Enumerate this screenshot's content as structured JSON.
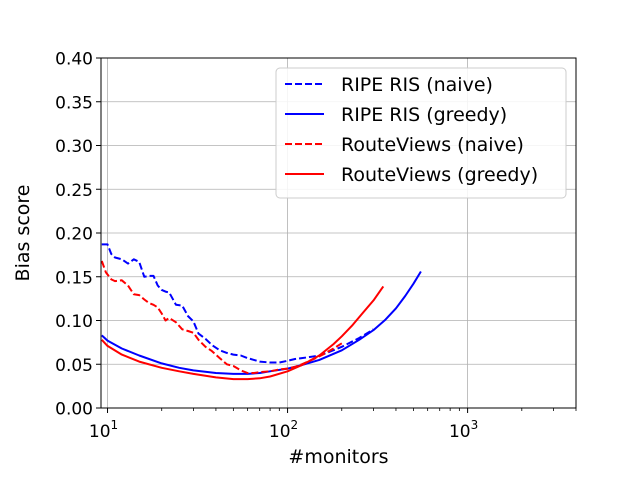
{
  "chart_data": {
    "type": "line",
    "title": "",
    "xlabel": "#monitors",
    "ylabel": "Bias score",
    "xscale": "log",
    "xlim": [
      9.2,
      4000
    ],
    "ylim": [
      0.0,
      0.4
    ],
    "x_ticks": [
      {
        "value": 10,
        "base": "10",
        "exp": "1"
      },
      {
        "value": 100,
        "base": "10",
        "exp": "2"
      },
      {
        "value": 1000,
        "base": "10",
        "exp": "3"
      }
    ],
    "y_ticks": [
      {
        "value": 0.0,
        "label": "0.00"
      },
      {
        "value": 0.05,
        "label": "0.05"
      },
      {
        "value": 0.1,
        "label": "0.10"
      },
      {
        "value": 0.15,
        "label": "0.15"
      },
      {
        "value": 0.2,
        "label": "0.20"
      },
      {
        "value": 0.25,
        "label": "0.25"
      },
      {
        "value": 0.3,
        "label": "0.30"
      },
      {
        "value": 0.35,
        "label": "0.35"
      },
      {
        "value": 0.4,
        "label": "0.40"
      }
    ],
    "grid": true,
    "legend_position": "top-right",
    "series": [
      {
        "name": "RIPE RIS (naive)",
        "color": "#0000ff",
        "style": "dashed",
        "x": [
          9.3,
          10,
          10.5,
          11,
          12,
          13,
          14,
          15,
          16,
          17,
          18,
          19,
          20,
          21,
          22,
          24,
          26,
          28,
          30,
          32,
          35,
          38,
          42,
          46,
          50,
          55,
          60,
          65,
          70,
          80,
          90,
          100,
          110,
          120,
          130,
          150,
          170,
          200,
          250,
          300
        ],
        "y": [
          0.187,
          0.187,
          0.176,
          0.172,
          0.17,
          0.165,
          0.17,
          0.167,
          0.15,
          0.151,
          0.151,
          0.14,
          0.135,
          0.133,
          0.132,
          0.118,
          0.117,
          0.105,
          0.099,
          0.085,
          0.079,
          0.072,
          0.066,
          0.063,
          0.061,
          0.06,
          0.057,
          0.055,
          0.053,
          0.052,
          0.052,
          0.054,
          0.056,
          0.057,
          0.058,
          0.06,
          0.064,
          0.07,
          0.08,
          0.09
        ]
      },
      {
        "name": "RIPE RIS (greedy)",
        "color": "#0000ff",
        "style": "solid",
        "x": [
          9.3,
          10,
          12,
          15,
          20,
          25,
          30,
          40,
          50,
          60,
          70,
          80,
          100,
          120,
          150,
          200,
          250,
          300,
          350,
          400,
          450,
          500,
          550
        ],
        "y": [
          0.083,
          0.077,
          0.068,
          0.06,
          0.051,
          0.046,
          0.043,
          0.04,
          0.039,
          0.039,
          0.04,
          0.042,
          0.045,
          0.049,
          0.055,
          0.066,
          0.078,
          0.089,
          0.101,
          0.114,
          0.128,
          0.142,
          0.156
        ]
      },
      {
        "name": "RouteViews (naive)",
        "color": "#ff0000",
        "style": "dashed",
        "x": [
          9.3,
          9.8,
          10.5,
          11,
          12,
          13,
          14,
          15,
          16,
          17,
          18,
          19,
          20,
          21,
          22,
          24,
          26,
          28,
          30,
          32,
          35,
          38,
          42,
          46,
          50,
          55,
          60,
          65,
          70,
          80,
          90,
          100,
          110,
          120,
          140,
          160,
          180,
          200
        ],
        "y": [
          0.168,
          0.155,
          0.147,
          0.145,
          0.146,
          0.14,
          0.13,
          0.129,
          0.124,
          0.12,
          0.118,
          0.115,
          0.108,
          0.1,
          0.103,
          0.098,
          0.09,
          0.088,
          0.086,
          0.078,
          0.07,
          0.065,
          0.057,
          0.05,
          0.048,
          0.043,
          0.04,
          0.04,
          0.041,
          0.042,
          0.044,
          0.045,
          0.047,
          0.05,
          0.056,
          0.062,
          0.068,
          0.074
        ]
      },
      {
        "name": "RouteViews (greedy)",
        "color": "#ff0000",
        "style": "solid",
        "x": [
          9.3,
          10,
          12,
          15,
          20,
          25,
          30,
          40,
          50,
          60,
          70,
          80,
          100,
          120,
          150,
          180,
          200,
          230,
          260,
          300,
          340
        ],
        "y": [
          0.078,
          0.071,
          0.061,
          0.053,
          0.046,
          0.042,
          0.039,
          0.035,
          0.033,
          0.033,
          0.034,
          0.036,
          0.042,
          0.049,
          0.06,
          0.073,
          0.082,
          0.095,
          0.108,
          0.123,
          0.139
        ]
      }
    ]
  }
}
